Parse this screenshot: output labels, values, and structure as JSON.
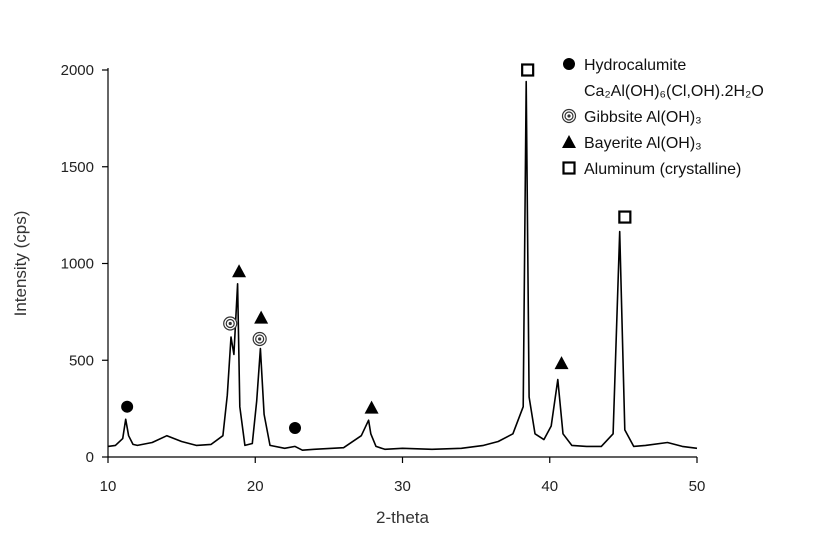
{
  "chart_data": {
    "type": "line",
    "title": "",
    "xlabel": "2-theta",
    "ylabel": "Intensity (cps)",
    "xlim": [
      10,
      50
    ],
    "ylim": [
      0,
      2000
    ],
    "x_ticks": [
      10,
      20,
      30,
      40,
      50
    ],
    "y_ticks": [
      0,
      500,
      1000,
      1500,
      2000
    ],
    "grid": false,
    "legend_position": "top-right",
    "series": [
      {
        "x": [
          10.0,
          10.5,
          11.0,
          11.2,
          11.4,
          11.7,
          12.0,
          13.0,
          14.0,
          15.0,
          16.0,
          17.0,
          17.8,
          18.1,
          18.35,
          18.55,
          18.8,
          18.95,
          19.3,
          19.8,
          20.1,
          20.35,
          20.6,
          21.0,
          22.0,
          22.7,
          23.2,
          24.0,
          26.0,
          27.2,
          27.7,
          27.85,
          28.2,
          28.8,
          30.0,
          32.0,
          34.0,
          35.5,
          36.5,
          37.5,
          38.2,
          38.4,
          38.6,
          39.0,
          39.6,
          40.1,
          40.55,
          40.9,
          41.5,
          42.5,
          43.5,
          44.3,
          44.75,
          45.1,
          45.7,
          46.5,
          48.0,
          49.0,
          50.0
        ],
        "y": [
          55,
          60,
          95,
          195,
          110,
          65,
          60,
          75,
          110,
          80,
          60,
          65,
          110,
          320,
          620,
          530,
          895,
          260,
          60,
          70,
          290,
          560,
          220,
          60,
          45,
          55,
          35,
          40,
          48,
          110,
          190,
          120,
          55,
          40,
          45,
          40,
          45,
          60,
          80,
          120,
          260,
          1940,
          310,
          120,
          90,
          160,
          400,
          120,
          60,
          55,
          55,
          120,
          1165,
          140,
          55,
          60,
          75,
          55,
          45
        ]
      }
    ],
    "markers": [
      {
        "phase": "hydrocalumite",
        "shape": "circle",
        "x": 11.3,
        "y": 260
      },
      {
        "phase": "hydrocalumite",
        "shape": "circle",
        "x": 22.7,
        "y": 150
      },
      {
        "phase": "gibbsite",
        "shape": "target",
        "x": 18.3,
        "y": 690
      },
      {
        "phase": "gibbsite",
        "shape": "target",
        "x": 20.3,
        "y": 610
      },
      {
        "phase": "bayerite",
        "shape": "triangle",
        "x": 18.9,
        "y": 960
      },
      {
        "phase": "bayerite",
        "shape": "triangle",
        "x": 20.4,
        "y": 720
      },
      {
        "phase": "bayerite",
        "shape": "triangle",
        "x": 27.9,
        "y": 255
      },
      {
        "phase": "bayerite",
        "shape": "triangle",
        "x": 40.8,
        "y": 485
      },
      {
        "phase": "aluminum",
        "shape": "square",
        "x": 38.5,
        "y": 2000
      },
      {
        "phase": "aluminum",
        "shape": "square",
        "x": 45.1,
        "y": 1240
      }
    ],
    "legend": [
      {
        "shape": "circle",
        "line1": "Hydrocalumite",
        "line2": "Ca₂Al(OH)₆(Cl,OH).2H₂O"
      },
      {
        "shape": "target",
        "line1": "Gibbsite Al(OH)₃"
      },
      {
        "shape": "triangle",
        "line1": "Bayerite Al(OH)₃"
      },
      {
        "shape": "square",
        "line1": "Aluminum (crystalline)"
      }
    ]
  }
}
